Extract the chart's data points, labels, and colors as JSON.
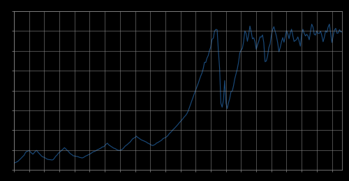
{
  "line_color": "#1a4a7a",
  "line_width": 0.85,
  "background_color": "#000000",
  "plot_bg_color": "#000000",
  "grid_color": "#888888",
  "grid_linewidth": 0.4,
  "spine_color": "#999999",
  "sensex": [
    1027,
    1080,
    1177,
    1254,
    1433,
    1592,
    1784,
    1972,
    2144,
    2497,
    2700,
    2738,
    2856,
    2622,
    2462,
    2302,
    2508,
    2733,
    2846,
    2604,
    2404,
    2190,
    2009,
    1902,
    1848,
    1735,
    1619,
    1552,
    1516,
    1505,
    1468,
    1507,
    1715,
    1985,
    2153,
    2390,
    2586,
    2720,
    2897,
    3052,
    3245,
    3082,
    2882,
    2741,
    2505,
    2339,
    2230,
    2066,
    2035,
    2014,
    1980,
    1927,
    1841,
    1809,
    1760,
    1814,
    1943,
    2048,
    2124,
    2228,
    2305,
    2412,
    2551,
    2663,
    2715,
    2812,
    2938,
    3003,
    3109,
    3198,
    3350,
    3371,
    3531,
    3738,
    3894,
    3679,
    3543,
    3422,
    3292,
    3182,
    3128,
    3019,
    2906,
    2846,
    2854,
    2926,
    3026,
    3220,
    3445,
    3584,
    3728,
    3902,
    4046,
    4280,
    4510,
    4621,
    4726,
    4912,
    4733,
    4624,
    4487,
    4370,
    4296,
    4214,
    4132,
    4044,
    3906,
    3832,
    3713,
    3604,
    3553,
    3631,
    3730,
    3908,
    3985,
    4098,
    4219,
    4325,
    4530,
    4631,
    4703,
    4811,
    4997,
    5241,
    5422,
    5604,
    5838,
    6003,
    6197,
    6402,
    6603,
    6838,
    7042,
    7223,
    7451,
    7697,
    7878,
    8134,
    8500,
    9016,
    9552,
    10060,
    10546,
    11070,
    11553,
    12053,
    12512,
    13072,
    13584,
    14015,
    14650,
    15560,
    15551,
    16185,
    16562,
    17291,
    17823,
    18895,
    19059,
    20073,
    20321,
    20287,
    17291,
    14625,
    9647,
    9092,
    10076,
    12929,
    9708,
    8891,
    9709,
    10345,
    11328,
    11403,
    12173,
    13181,
    13901,
    14625,
    15575,
    16954,
    17325,
    17559,
    18535,
    20103,
    19734,
    18602,
    19521,
    20811,
    19985,
    18959,
    19117,
    18561,
    17448,
    18086,
    18605,
    19244,
    19201,
    19520,
    18403,
    15666,
    15765,
    16479,
    17702,
    18215,
    19446,
    20287,
    20714,
    20023,
    19367,
    18393,
    17082,
    17706,
    18506,
    19139,
    18475,
    19263,
    20157,
    19695,
    18988,
    19811,
    20350,
    19426,
    18587,
    18727,
    18858,
    19237,
    18638,
    17903,
    19589,
    20344,
    19762,
    19378,
    19612,
    19379,
    18827,
    20020,
    21080,
    20664,
    19612,
    19504,
    20103,
    19750,
    19748,
    20071,
    19427,
    18542,
    19208,
    20133,
    19894,
    20664,
    21080,
    19748,
    18432,
    19427,
    20234,
    20479,
    19764,
    19812,
    20289,
    19960,
    19957
  ],
  "ylim_min": 0,
  "ylim_max": 23000,
  "n_xticks": 23,
  "n_yticks": 8
}
